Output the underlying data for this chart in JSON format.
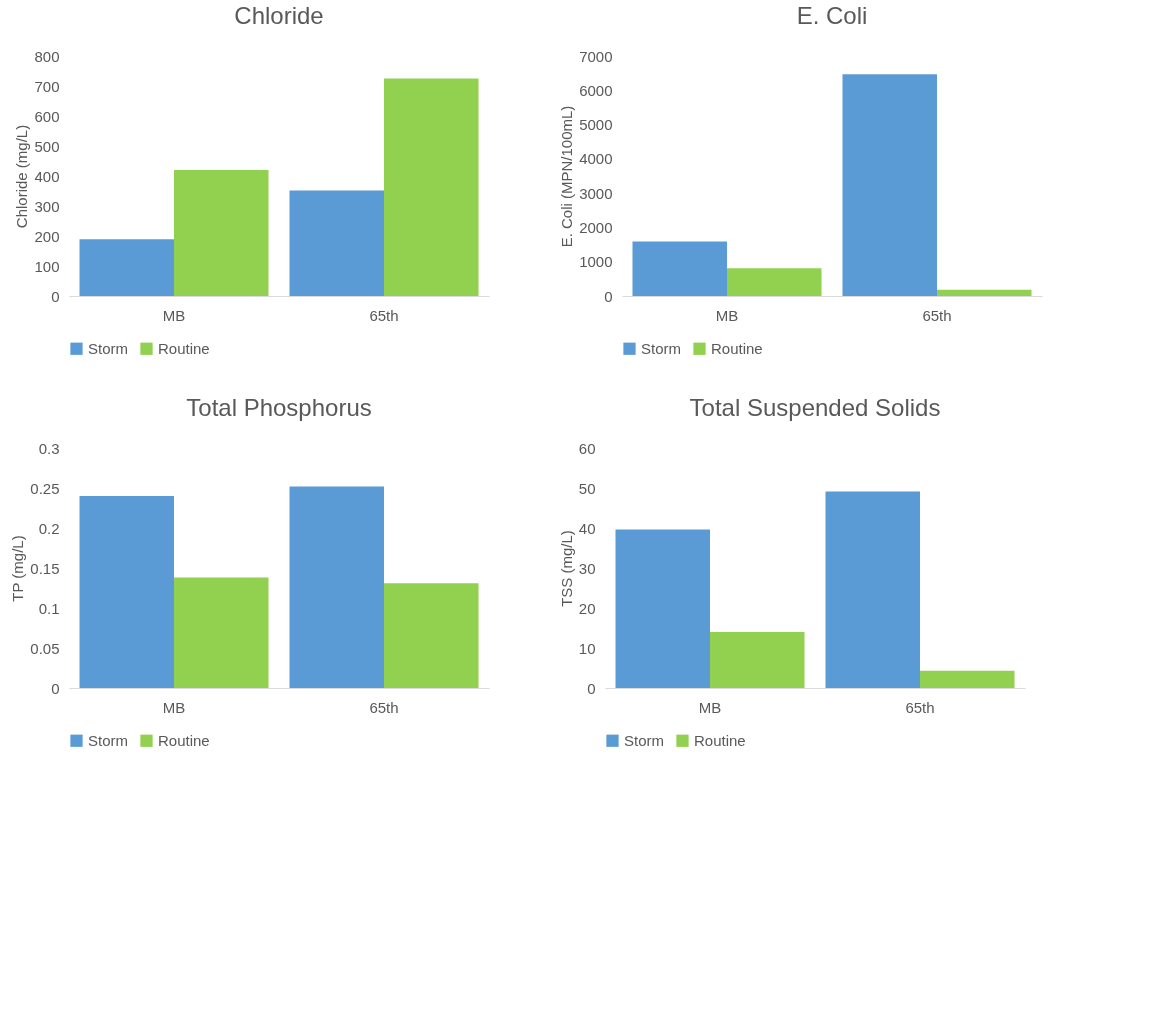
{
  "chart_data": [
    {
      "type": "bar",
      "title": "Chloride",
      "ylabel": "Chloride (mg/L)",
      "categories": [
        "MB",
        "65th"
      ],
      "ylim": [
        0,
        800
      ],
      "yticks": [
        0,
        100,
        200,
        300,
        400,
        500,
        600,
        700,
        800
      ],
      "grid": false,
      "legend": "bottom",
      "series": [
        {
          "name": "Storm",
          "color": "#5b9bd5",
          "values": [
            189,
            352
          ]
        },
        {
          "name": "Routine",
          "color": "#92d050",
          "values": [
            420,
            725
          ]
        }
      ]
    },
    {
      "type": "bar",
      "title": "E. Coli",
      "ylabel": "E. Coli (MPN/100mL)",
      "categories": [
        "MB",
        "65th"
      ],
      "ylim": [
        0,
        7000
      ],
      "yticks": [
        0,
        1000,
        2000,
        3000,
        4000,
        5000,
        6000,
        7000
      ],
      "grid": false,
      "legend": "bottom",
      "series": [
        {
          "name": "Storm",
          "color": "#5b9bd5",
          "values": [
            1590,
            6470
          ]
        },
        {
          "name": "Routine",
          "color": "#92d050",
          "values": [
            810,
            180
          ]
        }
      ]
    },
    {
      "type": "bar",
      "title": "Total Phosphorus",
      "ylabel": "TP (mg/L)",
      "categories": [
        "MB",
        "65th"
      ],
      "ylim": [
        0,
        0.3
      ],
      "yticks": [
        0,
        0.05,
        0.1,
        0.15,
        0.2,
        0.25,
        0.3
      ],
      "grid": false,
      "legend": "bottom",
      "series": [
        {
          "name": "Storm",
          "color": "#5b9bd5",
          "values": [
            0.24,
            0.252
          ]
        },
        {
          "name": "Routine",
          "color": "#92d050",
          "values": [
            0.138,
            0.131
          ]
        }
      ]
    },
    {
      "type": "bar",
      "title": "Total Suspended Solids",
      "ylabel": "TSS (mg/L)",
      "categories": [
        "MB",
        "65th"
      ],
      "ylim": [
        0,
        60
      ],
      "yticks": [
        0,
        10,
        20,
        30,
        40,
        50,
        60
      ],
      "grid": false,
      "legend": "bottom",
      "series": [
        {
          "name": "Storm",
          "color": "#5b9bd5",
          "values": [
            39.6,
            49.1
          ]
        },
        {
          "name": "Routine",
          "color": "#92d050",
          "values": [
            14.0,
            4.3
          ]
        }
      ]
    }
  ]
}
